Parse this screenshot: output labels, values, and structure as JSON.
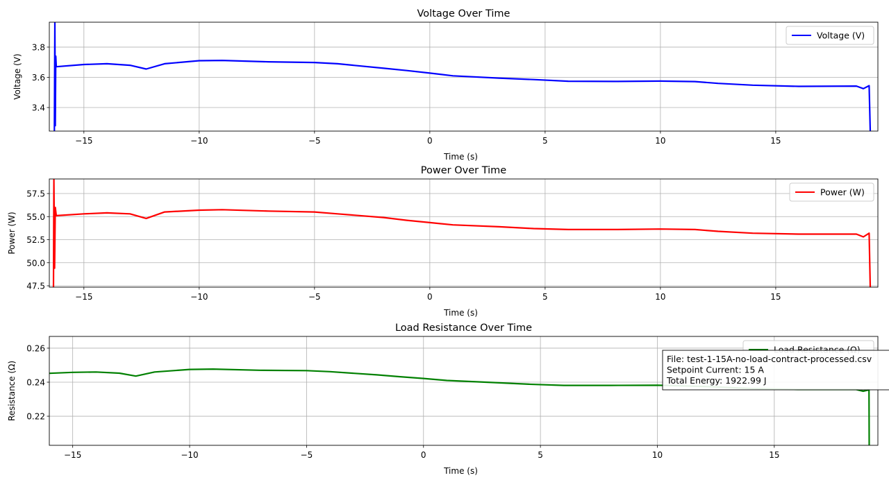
{
  "chart_data": [
    {
      "type": "line",
      "title": "Voltage Over Time",
      "xlabel": "Time (s)",
      "ylabel": "Voltage (V)",
      "xlim": [
        -16.5,
        19.43
      ],
      "ylim": [
        3.244,
        3.965
      ],
      "xticks": [
        -15,
        -10,
        -5,
        0,
        5,
        10,
        15
      ],
      "xtick_labels": [
        "−15",
        "−10",
        "−5",
        "0",
        "5",
        "10",
        "15"
      ],
      "yticks": [
        3.4,
        3.6,
        3.8
      ],
      "ytick_labels": [
        "3.4",
        "3.6",
        "3.8"
      ],
      "grid": true,
      "legend": {
        "position": "top-right",
        "entries": [
          "Voltage (V)"
        ]
      },
      "series": [
        {
          "name": "Voltage (V)",
          "color": "#0000ff",
          "x": [
            -16.28,
            -16.26,
            -16.24,
            -16.22,
            -16.2,
            -15,
            -14,
            -13,
            -12.3,
            -11.5,
            -10,
            -9,
            -7,
            -5,
            -4,
            -2,
            -1,
            0,
            1,
            3,
            4.5,
            6,
            8,
            10,
            11.5,
            12.5,
            14,
            16,
            18.5,
            18.8,
            19.05,
            19.1
          ],
          "y": [
            3.244,
            3.965,
            3.28,
            3.74,
            3.67,
            3.685,
            3.69,
            3.68,
            3.655,
            3.69,
            3.71,
            3.712,
            3.703,
            3.698,
            3.69,
            3.66,
            3.645,
            3.628,
            3.61,
            3.595,
            3.585,
            3.574,
            3.573,
            3.575,
            3.572,
            3.56,
            3.548,
            3.54,
            3.542,
            3.525,
            3.545,
            3.244
          ]
        }
      ]
    },
    {
      "type": "line",
      "title": "Power Over Time",
      "xlabel": "Time (s)",
      "ylabel": "Power (W)",
      "xlim": [
        -16.5,
        19.43
      ],
      "ylim": [
        47.35,
        59.08
      ],
      "xticks": [
        -15,
        -10,
        -5,
        0,
        5,
        10,
        15
      ],
      "xtick_labels": [
        "−15",
        "−10",
        "−5",
        "0",
        "5",
        "10",
        "15"
      ],
      "yticks": [
        47.5,
        50.0,
        52.5,
        55.0,
        57.5
      ],
      "ytick_labels": [
        "47.5",
        "50.0",
        "52.5",
        "55.0",
        "57.5"
      ],
      "grid": true,
      "legend": {
        "position": "top-right",
        "entries": [
          "Power (W)"
        ]
      },
      "series": [
        {
          "name": "Power (W)",
          "color": "#ff0000",
          "x": [
            -16.32,
            -16.3,
            -16.27,
            -16.24,
            -16.2,
            -15,
            -14,
            -13,
            -12.3,
            -11.5,
            -10,
            -9,
            -7,
            -5,
            -4,
            -2,
            -1,
            0,
            1,
            3,
            4.5,
            6,
            8,
            10,
            11.5,
            12.5,
            14,
            16,
            18.5,
            18.8,
            19.05,
            19.1
          ],
          "y": [
            47.35,
            59.08,
            49.4,
            56.0,
            55.1,
            55.3,
            55.4,
            55.3,
            54.8,
            55.5,
            55.7,
            55.75,
            55.6,
            55.5,
            55.3,
            54.9,
            54.6,
            54.35,
            54.1,
            53.9,
            53.7,
            53.6,
            53.6,
            53.65,
            53.6,
            53.4,
            53.2,
            53.1,
            53.1,
            52.8,
            53.2,
            47.35
          ]
        }
      ]
    },
    {
      "type": "line",
      "title": "Load Resistance Over Time",
      "xlabel": "Time (s)",
      "ylabel": "Resistance (Ω)",
      "xlim": [
        -16.0,
        19.43
      ],
      "ylim": [
        0.2029,
        0.2669
      ],
      "xticks": [
        -15,
        -10,
        -5,
        0,
        5,
        10,
        15
      ],
      "xtick_labels": [
        "−15",
        "−10",
        "−5",
        "0",
        "5",
        "10",
        "15"
      ],
      "yticks": [
        0.22,
        0.24,
        0.26
      ],
      "ytick_labels": [
        "0.22",
        "0.24",
        "0.26"
      ],
      "grid": true,
      "legend": {
        "position": "top-right",
        "entries": [
          "Load Resistance (Ω)"
        ]
      },
      "series": [
        {
          "name": "Load Resistance (Ω)",
          "color": "#008000",
          "x": [
            -16,
            -15,
            -14,
            -13,
            -12.3,
            -11.5,
            -10,
            -9,
            -7,
            -5,
            -4,
            -2,
            -1,
            0,
            1,
            3,
            4.5,
            6,
            8,
            10,
            12,
            14,
            16,
            18.5,
            18.8,
            19.05,
            19.06
          ],
          "y": [
            0.2452,
            0.2458,
            0.246,
            0.2453,
            0.2436,
            0.246,
            0.2475,
            0.2477,
            0.247,
            0.2468,
            0.2462,
            0.2443,
            0.2432,
            0.2422,
            0.241,
            0.2398,
            0.2388,
            0.2381,
            0.2381,
            0.2382,
            0.2375,
            0.2363,
            0.2357,
            0.2357,
            0.2347,
            0.2355,
            0.2029
          ]
        }
      ],
      "annotation": {
        "lines": [
          "File: test-1-15A-no-load-contract-processed.csv",
          "Setpoint Current: 15 A",
          "Total Energy: 1922.99 J"
        ]
      }
    }
  ]
}
